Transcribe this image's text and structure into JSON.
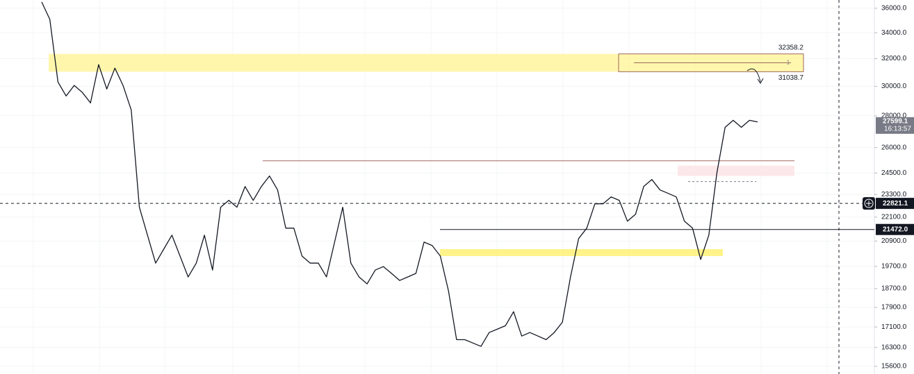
{
  "chart_data": {
    "type": "line",
    "yscale": "log",
    "color": "#131722",
    "grid": true,
    "ylim": [
      15320,
      36700
    ],
    "yticks": [
      {
        "value": 36000,
        "label": "36000.0"
      },
      {
        "value": 34000,
        "label": "34000.0"
      },
      {
        "value": 32000,
        "label": "32000.0"
      },
      {
        "value": 30000,
        "label": "30000.0"
      },
      {
        "value": 28000,
        "label": "28000.0"
      },
      {
        "value": 26000,
        "label": "26000.0"
      },
      {
        "value": 24500,
        "label": "24500.0"
      },
      {
        "value": 23300,
        "label": "23300.0"
      },
      {
        "value": 22100,
        "label": "22100.0"
      },
      {
        "value": 20900,
        "label": "20900.0"
      },
      {
        "value": 19700,
        "label": "19700.0"
      },
      {
        "value": 18700,
        "label": "18700.0"
      },
      {
        "value": 17900,
        "label": "17900.0"
      },
      {
        "value": 17100,
        "label": "17100.0"
      },
      {
        "value": 16300,
        "label": "16300.0"
      },
      {
        "value": 15600,
        "label": "15600.0"
      }
    ],
    "values": [
      36530,
      35070,
      30300,
      29330,
      30060,
      29570,
      28860,
      31560,
      29810,
      31300,
      30060,
      28390,
      22620,
      21190,
      19850,
      20510,
      21190,
      20180,
      19220,
      19850,
      21190,
      19530,
      22620,
      22980,
      22620,
      23740,
      22980,
      23740,
      24330,
      23550,
      21540,
      21540,
      20180,
      19850,
      19850,
      19220,
      20850,
      22620,
      19850,
      19220,
      18910,
      19530,
      19690,
      19380,
      19060,
      19220,
      19380,
      20850,
      20680,
      20180,
      18610,
      16600,
      16600,
      16470,
      16340,
      16880,
      17010,
      17150,
      17720,
      16740,
      16880,
      16740,
      16600,
      16880,
      17290,
      19220,
      21020,
      21540,
      22800,
      22800,
      23170,
      22980,
      21890,
      22250,
      23740,
      24130,
      23550,
      23360,
      23170,
      21890,
      21540,
      20020,
      21190,
      24530,
      27260,
      27710,
      27260,
      27710,
      27600
    ],
    "zones": [
      {
        "from": 31038.7,
        "to": 32358.2,
        "color": "#fff59d"
      },
      {
        "from": 20180,
        "to": 20510,
        "color": "#fff176"
      },
      {
        "from": 24330,
        "to": 24930,
        "color": "#fbe4e6"
      }
    ],
    "levels": [
      {
        "value": 25210,
        "color": "#a1665e"
      },
      {
        "value": 24016,
        "color": "#787b86"
      }
    ],
    "target_box": {
      "top": {
        "value": 32358.2,
        "label": "32358.2"
      },
      "bottom": {
        "value": 31038.7,
        "label": "31038.7"
      },
      "label": "1"
    },
    "price_labels": {
      "last": {
        "value": 27599.1,
        "time": "16:13:57"
      },
      "crosshair": {
        "value": 22821.1
      },
      "line": {
        "value": 21472,
        "label": "21472.0"
      }
    }
  }
}
